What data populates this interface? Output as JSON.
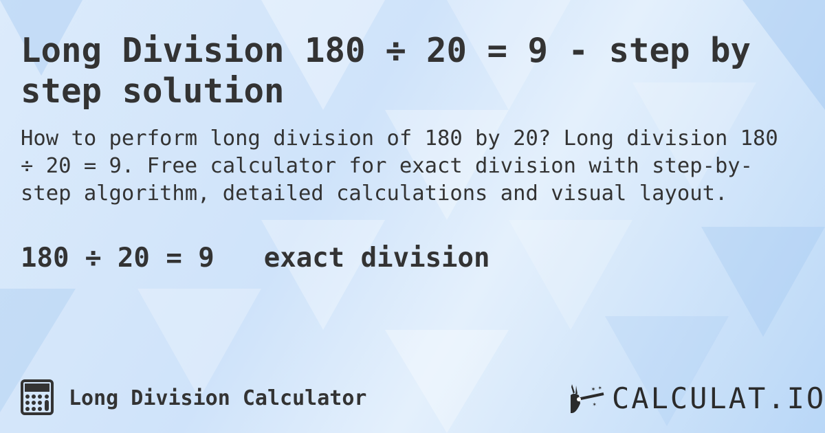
{
  "title": "Long Division 180 ÷ 20 = 9 - step by step solution",
  "description": "How to perform long division of 180 by 20? Long division 180 ÷ 20 = 9. Free calculator for exact division with step-by-step algorithm, detailed calculations and visual layout.",
  "result": {
    "equation": "180 ÷ 20 = 9",
    "type": "exact division"
  },
  "footer": {
    "icon": "calculator-icon",
    "label": "Long Division Calculator"
  },
  "logo": {
    "text": "CALCULAT.IO",
    "icon": "magic-hand-wand-icon"
  },
  "colors": {
    "text": "#333333",
    "background": "#cfe3fa"
  }
}
